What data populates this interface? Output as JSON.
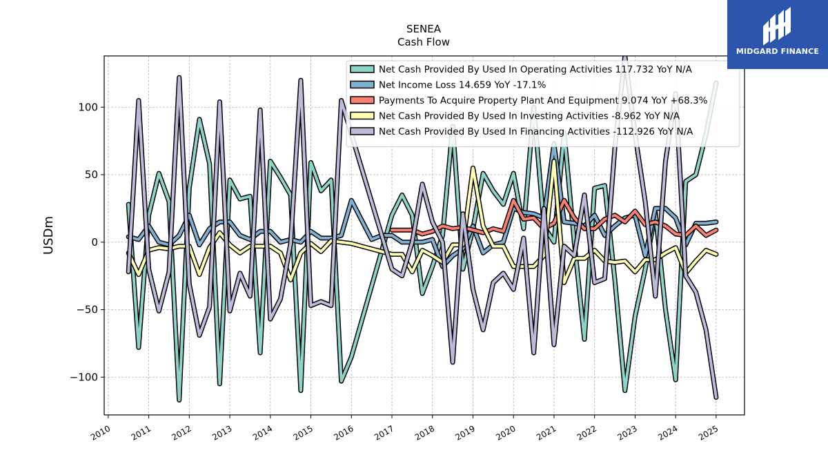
{
  "header": {
    "title": "SENEA",
    "subtitle": "Cash Flow"
  },
  "logo": {
    "text": "MIDGARD FINANCE",
    "background": "#2c56ad"
  },
  "chart_data": {
    "type": "line",
    "ylabel": "USDm",
    "xlabel": "",
    "xlim": [
      2009.9,
      2025.7
    ],
    "ylim": [
      -128,
      138
    ],
    "yticks": [
      -100,
      -50,
      0,
      50,
      100
    ],
    "ytick_labels": [
      "−100",
      "−50",
      "0",
      "50",
      "100"
    ],
    "xticks": [
      2010,
      2011,
      2012,
      2013,
      2014,
      2015,
      2016,
      2017,
      2018,
      2019,
      2020,
      2021,
      2022,
      2023,
      2024,
      2025
    ],
    "xtick_labels": [
      "2010",
      "2011",
      "2012",
      "2013",
      "2014",
      "2015",
      "2016",
      "2017",
      "2018",
      "2019",
      "2020",
      "2021",
      "2022",
      "2023",
      "2024",
      "2025"
    ],
    "grid": true,
    "legend_position": "top-right",
    "series": [
      {
        "name": "Net Cash Provided By Used In Operating Activities  117.732 YoY N/A",
        "color": "#8dd3c7",
        "points": [
          [
            2010.5,
            28
          ],
          [
            2010.75,
            -78
          ],
          [
            2011.0,
            20
          ],
          [
            2011.25,
            51
          ],
          [
            2011.5,
            30
          ],
          [
            2011.75,
            -117
          ],
          [
            2012.0,
            40
          ],
          [
            2012.25,
            91
          ],
          [
            2012.5,
            58
          ],
          [
            2012.75,
            -105
          ],
          [
            2013.0,
            46
          ],
          [
            2013.25,
            32
          ],
          [
            2013.5,
            34
          ],
          [
            2013.75,
            -82
          ],
          [
            2014.0,
            60
          ],
          [
            2014.25,
            48
          ],
          [
            2014.5,
            35
          ],
          [
            2014.75,
            -110
          ],
          [
            2015.0,
            59
          ],
          [
            2015.25,
            38
          ],
          [
            2015.5,
            46
          ],
          [
            2015.75,
            -103
          ],
          [
            2016.0,
            -85
          ],
          [
            2017.0,
            20
          ],
          [
            2017.25,
            35
          ],
          [
            2017.5,
            20
          ],
          [
            2017.75,
            -38
          ],
          [
            2018.0,
            -18
          ],
          [
            2018.25,
            5
          ],
          [
            2018.5,
            86
          ],
          [
            2018.75,
            -20
          ],
          [
            2019.0,
            10
          ],
          [
            2019.25,
            51
          ],
          [
            2019.5,
            38
          ],
          [
            2019.75,
            28
          ],
          [
            2020.0,
            51
          ],
          [
            2020.25,
            10
          ],
          [
            2020.5,
            100
          ],
          [
            2020.75,
            12
          ],
          [
            2021.0,
            0
          ],
          [
            2021.25,
            81
          ],
          [
            2021.5,
            0
          ],
          [
            2021.75,
            -72
          ],
          [
            2022.0,
            40
          ],
          [
            2022.25,
            42
          ],
          [
            2022.5,
            -28
          ],
          [
            2022.75,
            -110
          ],
          [
            2023.0,
            -55
          ],
          [
            2023.25,
            -20
          ],
          [
            2023.5,
            22
          ],
          [
            2023.75,
            -50
          ],
          [
            2024.0,
            -102
          ],
          [
            2024.25,
            45
          ],
          [
            2024.5,
            50
          ],
          [
            2024.75,
            80
          ],
          [
            2025.0,
            118
          ]
        ]
      },
      {
        "name": "Net Income Loss  14.659 YoY -17.1%",
        "color": "#80b1d3",
        "points": [
          [
            2010.5,
            4
          ],
          [
            2010.75,
            2
          ],
          [
            2011.0,
            12
          ],
          [
            2011.25,
            0
          ],
          [
            2011.5,
            -2
          ],
          [
            2011.75,
            5
          ],
          [
            2012.0,
            20
          ],
          [
            2012.25,
            -2
          ],
          [
            2012.5,
            10
          ],
          [
            2012.75,
            15
          ],
          [
            2013.0,
            15
          ],
          [
            2013.25,
            5
          ],
          [
            2013.5,
            2
          ],
          [
            2013.75,
            8
          ],
          [
            2014.0,
            8
          ],
          [
            2014.25,
            0
          ],
          [
            2014.5,
            2
          ],
          [
            2014.75,
            0
          ],
          [
            2015.0,
            8
          ],
          [
            2015.25,
            3
          ],
          [
            2015.5,
            3
          ],
          [
            2015.75,
            5
          ],
          [
            2016.0,
            31
          ],
          [
            2016.5,
            2
          ],
          [
            2016.75,
            5
          ],
          [
            2017.0,
            5
          ],
          [
            2017.25,
            0
          ],
          [
            2017.5,
            0
          ],
          [
            2017.75,
            0
          ],
          [
            2018.0,
            2
          ],
          [
            2018.25,
            -18
          ],
          [
            2018.5,
            -10
          ],
          [
            2018.75,
            -5
          ],
          [
            2019.0,
            12
          ],
          [
            2019.25,
            -8
          ],
          [
            2019.5,
            -2
          ],
          [
            2019.75,
            0
          ],
          [
            2020.0,
            25
          ],
          [
            2020.25,
            22
          ],
          [
            2020.5,
            21
          ],
          [
            2020.75,
            18
          ],
          [
            2021.0,
            73
          ],
          [
            2021.25,
            15
          ],
          [
            2021.5,
            14
          ],
          [
            2021.75,
            12
          ],
          [
            2022.0,
            20
          ],
          [
            2022.25,
            5
          ],
          [
            2022.5,
            12
          ],
          [
            2022.75,
            18
          ],
          [
            2023.0,
            20
          ],
          [
            2023.25,
            -10
          ],
          [
            2023.5,
            25
          ],
          [
            2023.75,
            25
          ],
          [
            2024.0,
            18
          ],
          [
            2024.25,
            -2
          ],
          [
            2024.5,
            14
          ],
          [
            2024.75,
            14
          ],
          [
            2025.0,
            15
          ]
        ]
      },
      {
        "name": "Payments To Acquire Property Plant And Equipment  9.074 YoY +68.3%",
        "color": "#fb8072",
        "points": [
          [
            2017.0,
            9
          ],
          [
            2017.25,
            9
          ],
          [
            2017.5,
            9
          ],
          [
            2017.75,
            6
          ],
          [
            2018.0,
            8
          ],
          [
            2018.25,
            12
          ],
          [
            2018.5,
            10
          ],
          [
            2018.75,
            11
          ],
          [
            2019.0,
            9
          ],
          [
            2019.25,
            7
          ],
          [
            2019.5,
            10
          ],
          [
            2019.75,
            8
          ],
          [
            2020.0,
            31
          ],
          [
            2020.25,
            17
          ],
          [
            2020.5,
            18
          ],
          [
            2020.75,
            10
          ],
          [
            2021.0,
            14
          ],
          [
            2021.25,
            31
          ],
          [
            2021.5,
            18
          ],
          [
            2021.75,
            10
          ],
          [
            2022.0,
            10
          ],
          [
            2022.25,
            17
          ],
          [
            2022.5,
            20
          ],
          [
            2022.75,
            15
          ],
          [
            2023.0,
            23
          ],
          [
            2023.25,
            13
          ],
          [
            2023.5,
            15
          ],
          [
            2023.75,
            12
          ],
          [
            2024.0,
            6
          ],
          [
            2024.25,
            5
          ],
          [
            2024.5,
            12
          ],
          [
            2024.75,
            5
          ],
          [
            2025.0,
            9
          ]
        ]
      },
      {
        "name": "Net Cash Provided By Used In Investing Activities  -8.962 YoY N/A",
        "color": "#ffffb3",
        "points": [
          [
            2010.5,
            -8
          ],
          [
            2010.75,
            -24
          ],
          [
            2011.0,
            -6
          ],
          [
            2011.25,
            -4
          ],
          [
            2011.5,
            -5
          ],
          [
            2011.75,
            -3
          ],
          [
            2012.0,
            -3
          ],
          [
            2012.25,
            -24
          ],
          [
            2012.5,
            -4
          ],
          [
            2012.75,
            7
          ],
          [
            2013.0,
            -2
          ],
          [
            2013.25,
            -8
          ],
          [
            2013.5,
            -3
          ],
          [
            2013.75,
            -3
          ],
          [
            2014.0,
            -3
          ],
          [
            2014.25,
            -8
          ],
          [
            2014.5,
            -28
          ],
          [
            2014.75,
            -8
          ],
          [
            2015.0,
            -1
          ],
          [
            2015.25,
            -7
          ],
          [
            2015.5,
            1
          ],
          [
            2015.75,
            0
          ],
          [
            2016.0,
            -1
          ],
          [
            2017.0,
            -9
          ],
          [
            2017.25,
            -9
          ],
          [
            2017.5,
            -22
          ],
          [
            2017.75,
            -6
          ],
          [
            2018.0,
            -10
          ],
          [
            2018.25,
            -15
          ],
          [
            2018.5,
            -2
          ],
          [
            2018.75,
            -2
          ],
          [
            2019.0,
            55
          ],
          [
            2019.25,
            12
          ],
          [
            2019.5,
            -3
          ],
          [
            2019.75,
            -3
          ],
          [
            2020.0,
            -18
          ],
          [
            2020.25,
            -18
          ],
          [
            2020.5,
            -18
          ],
          [
            2020.75,
            -10
          ],
          [
            2021.0,
            60
          ],
          [
            2021.25,
            -30
          ],
          [
            2021.5,
            -12
          ],
          [
            2021.75,
            -12
          ],
          [
            2022.0,
            -6
          ],
          [
            2022.25,
            -14
          ],
          [
            2022.5,
            -15
          ],
          [
            2022.75,
            -14
          ],
          [
            2023.0,
            -22
          ],
          [
            2023.25,
            -13
          ],
          [
            2023.5,
            -13
          ],
          [
            2023.75,
            -8
          ],
          [
            2024.0,
            -4
          ],
          [
            2024.25,
            -23
          ],
          [
            2024.5,
            -14
          ],
          [
            2024.75,
            -6
          ],
          [
            2025.0,
            -9
          ]
        ]
      },
      {
        "name": "Net Cash Provided By Used In Financing Activities  -112.926 YoY N/A",
        "color": "#bebada",
        "points": [
          [
            2010.5,
            -22
          ],
          [
            2010.75,
            105
          ],
          [
            2011.0,
            -20
          ],
          [
            2011.25,
            -51
          ],
          [
            2011.5,
            -22
          ],
          [
            2011.75,
            122
          ],
          [
            2012.0,
            -31
          ],
          [
            2012.25,
            -69
          ],
          [
            2012.5,
            -48
          ],
          [
            2012.75,
            104
          ],
          [
            2013.0,
            -51
          ],
          [
            2013.25,
            -23
          ],
          [
            2013.5,
            -40
          ],
          [
            2013.75,
            98
          ],
          [
            2014.0,
            -57
          ],
          [
            2014.25,
            -42
          ],
          [
            2014.5,
            -1
          ],
          [
            2014.75,
            120
          ],
          [
            2015.0,
            -47
          ],
          [
            2015.25,
            -44
          ],
          [
            2015.5,
            -47
          ],
          [
            2015.75,
            105
          ],
          [
            2016.0,
            80
          ],
          [
            2017.0,
            -20
          ],
          [
            2017.25,
            -25
          ],
          [
            2017.5,
            0
          ],
          [
            2017.75,
            43
          ],
          [
            2018.0,
            15
          ],
          [
            2018.25,
            0
          ],
          [
            2018.5,
            -89
          ],
          [
            2018.75,
            21
          ],
          [
            2019.0,
            -35
          ],
          [
            2019.25,
            -65
          ],
          [
            2019.5,
            -30
          ],
          [
            2019.75,
            -23
          ],
          [
            2020.0,
            -35
          ],
          [
            2020.25,
            3
          ],
          [
            2020.5,
            -82
          ],
          [
            2020.75,
            25
          ],
          [
            2021.0,
            -76
          ],
          [
            2021.25,
            -3
          ],
          [
            2021.5,
            -10
          ],
          [
            2021.75,
            35
          ],
          [
            2022.0,
            -30
          ],
          [
            2022.25,
            -27
          ],
          [
            2022.5,
            70
          ],
          [
            2022.75,
            138
          ],
          [
            2023.0,
            80
          ],
          [
            2023.25,
            30
          ],
          [
            2023.5,
            -40
          ],
          [
            2023.75,
            60
          ],
          [
            2024.0,
            110
          ],
          [
            2024.25,
            -25
          ],
          [
            2024.5,
            -37
          ],
          [
            2024.75,
            -65
          ],
          [
            2025.0,
            -115
          ]
        ]
      }
    ]
  }
}
